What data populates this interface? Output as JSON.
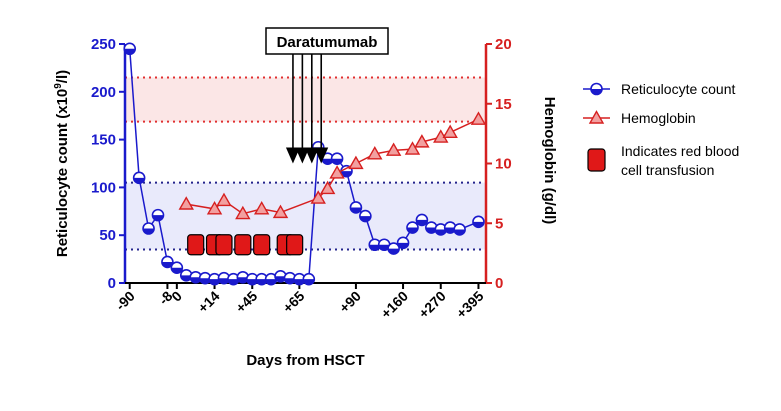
{
  "chart_data": {
    "type": "line",
    "xlabel": "Days from HSCT",
    "ylabel_left": "Reticulocyte count (x10",
    "ylabel_left_sup": "9",
    "ylabel_left_end": "/l)",
    "ylabel_right": "Hemoglobin (g/dl)",
    "ylim_left": [
      0,
      250
    ],
    "ylim_right": [
      0,
      20
    ],
    "yticks_left": [
      0,
      50,
      100,
      150,
      200,
      250
    ],
    "yticks_right": [
      0,
      5,
      10,
      15,
      20
    ],
    "xticks": [
      {
        "label": "-90",
        "x": 0
      },
      {
        "label": "-8",
        "x": 4
      },
      {
        "label": "0",
        "x": 5
      },
      {
        "label": "+14",
        "x": 9
      },
      {
        "label": "+45",
        "x": 13
      },
      {
        "label": "+65",
        "x": 18
      },
      {
        "label": "+90",
        "x": 24
      },
      {
        "label": "+160",
        "x": 29
      },
      {
        "label": "+270",
        "x": 33
      },
      {
        "label": "+395",
        "x": 37
      }
    ],
    "reference_bands": [
      {
        "axis": "right",
        "range": [
          13.5,
          17.2
        ],
        "color": "#fbe6e6",
        "line_color": "#e03030"
      },
      {
        "axis": "left",
        "range": [
          35,
          105
        ],
        "color": "#e9eafb",
        "line_color": "#24248c"
      }
    ],
    "series": [
      {
        "name": "Reticulocyte count",
        "axis": "left",
        "color": "#1a1acc",
        "marker": "circle",
        "x": [
          0,
          1,
          2,
          3,
          4,
          5,
          6,
          7,
          8,
          9,
          10,
          11,
          12,
          13,
          14,
          15,
          16,
          17,
          18,
          19,
          20,
          21,
          22,
          23,
          24,
          25,
          26,
          27,
          28,
          29,
          30,
          31,
          32,
          33,
          34,
          35,
          37
        ],
        "values": [
          245,
          110,
          57,
          71,
          22,
          16,
          8,
          6,
          5,
          4,
          5,
          4,
          6,
          4,
          4,
          4,
          7,
          5,
          4,
          4,
          142,
          130,
          130,
          117,
          79,
          70,
          40,
          40,
          36,
          42,
          58,
          66,
          58,
          56,
          58,
          56,
          64
        ]
      },
      {
        "name": "Hemoglobin",
        "axis": "right",
        "color": "#d62020",
        "marker": "triangle",
        "x": [
          6,
          9,
          10,
          12,
          14,
          16,
          20,
          21,
          22,
          24,
          26,
          28,
          30,
          31,
          33,
          34,
          37
        ],
        "values": [
          6.6,
          6.2,
          6.9,
          5.8,
          6.2,
          5.9,
          7.1,
          7.9,
          9.2,
          10,
          10.8,
          11.1,
          11.2,
          11.8,
          12.2,
          12.6,
          13.7
        ]
      }
    ],
    "transfusions": {
      "label": "Indicates red blood cell transfusion",
      "label_line1": "Indicates red blood",
      "label_line2": "cell transfusion",
      "x": [
        7,
        9,
        10,
        12,
        14,
        16.5,
        17.5
      ],
      "y_left": 40,
      "color": "#e01818"
    },
    "intervention": {
      "label": "Daratumumab",
      "x": [
        17,
        18,
        19,
        20
      ],
      "arrow_tip_left": 125
    },
    "legend_position": "right"
  }
}
